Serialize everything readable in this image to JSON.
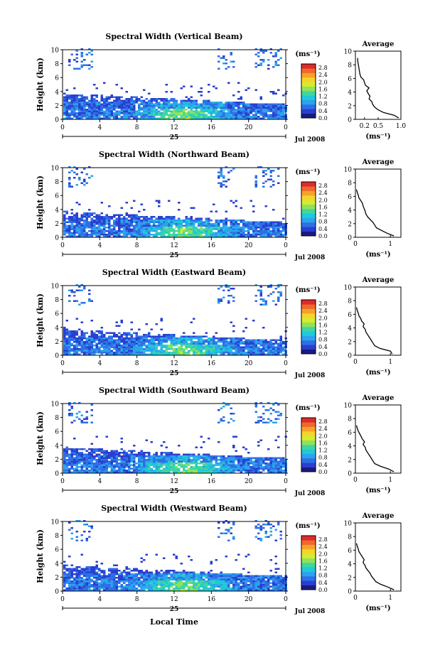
{
  "figure": {
    "xlabel": "Local Time",
    "day_label": "25",
    "month_label": "Jul 2008",
    "avg_title": "Average",
    "unit_label": "(ms⁻¹)",
    "ylabel": "Height (km)"
  },
  "colors": {
    "scale": [
      "#1a1a80",
      "#2a3fcf",
      "#2f6fe6",
      "#2ba3ee",
      "#20c8d8",
      "#3fd6a0",
      "#8fe25a",
      "#d6ea30",
      "#f6d42a",
      "#f6a22a",
      "#ef6a2a",
      "#e02a2a"
    ]
  },
  "chart_data": [
    {
      "type": "heatmap",
      "title": "Spectral Width (Vertical Beam)",
      "x_ticks": [
        "0",
        "4",
        "8",
        "12",
        "16",
        "20",
        "0"
      ],
      "y_ticks": [
        "0",
        "2",
        "4",
        "6",
        "8",
        "10"
      ],
      "xlim": [
        0,
        24
      ],
      "ylim": [
        0,
        10
      ],
      "colorbar_ticks": [
        "0.0",
        "0.4",
        "0.8",
        "1.2",
        "1.6",
        "2.0",
        "2.4",
        "2.8"
      ],
      "colorbar_range": [
        0,
        3.0
      ],
      "avg_profile": {
        "xlim": [
          0,
          1.0
        ],
        "x_ticks": [
          "0.2",
          "0.5",
          "1.0"
        ],
        "heights": [
          0.2,
          0.6,
          1.0,
          1.4,
          1.8,
          2.2,
          2.6,
          3.0,
          3.4,
          3.8,
          4.2,
          4.6,
          5.0,
          5.4,
          5.8,
          6.2,
          6.6,
          7.0,
          7.4,
          7.8,
          8.2,
          8.6,
          9.0
        ],
        "values": [
          0.95,
          0.85,
          0.62,
          0.5,
          0.42,
          0.38,
          0.36,
          0.3,
          0.32,
          0.28,
          0.25,
          0.3,
          0.22,
          0.2,
          0.18,
          0.12,
          0.1,
          0.09,
          0.08,
          0.07,
          0.06,
          0.05,
          0.05
        ]
      }
    },
    {
      "type": "heatmap",
      "title": "Spectral Width (Northward Beam)",
      "x_ticks": [
        "0",
        "4",
        "8",
        "12",
        "16",
        "20",
        "0"
      ],
      "y_ticks": [
        "0",
        "2",
        "4",
        "6",
        "8",
        "10"
      ],
      "xlim": [
        0,
        24
      ],
      "ylim": [
        0,
        10
      ],
      "colorbar_ticks": [
        "0.0",
        "0.4",
        "0.8",
        "1.2",
        "1.6",
        "2.0",
        "2.4",
        "2.8"
      ],
      "colorbar_range": [
        0,
        3.0
      ],
      "avg_profile": {
        "xlim": [
          0,
          1.3
        ],
        "x_ticks": [
          "0",
          "1"
        ],
        "heights": [
          0.2,
          0.6,
          1.0,
          1.4,
          1.8,
          2.2,
          2.6,
          3.0,
          3.4,
          3.8,
          4.2,
          4.6,
          5.0,
          5.4,
          5.8,
          6.2,
          6.6,
          7.0
        ],
        "values": [
          1.1,
          0.9,
          0.75,
          0.6,
          0.55,
          0.5,
          0.42,
          0.35,
          0.3,
          0.28,
          0.25,
          0.22,
          0.2,
          0.15,
          0.1,
          0.08,
          0.05,
          0.03
        ]
      }
    },
    {
      "type": "heatmap",
      "title": "Spectral Width (Eastward Beam)",
      "x_ticks": [
        "0",
        "4",
        "8",
        "12",
        "16",
        "20",
        "0"
      ],
      "y_ticks": [
        "0",
        "2",
        "4",
        "6",
        "8",
        "10"
      ],
      "xlim": [
        0,
        24
      ],
      "ylim": [
        0,
        10
      ],
      "colorbar_ticks": [
        "0.0",
        "0.4",
        "0.8",
        "1.2",
        "1.6",
        "2.0",
        "2.4",
        "2.8"
      ],
      "colorbar_range": [
        0,
        3.0
      ],
      "avg_profile": {
        "xlim": [
          0,
          1.3
        ],
        "x_ticks": [
          "0",
          "1"
        ],
        "heights": [
          0.2,
          0.6,
          1.0,
          1.4,
          1.8,
          2.2,
          2.6,
          3.0,
          3.4,
          3.8,
          4.2,
          4.6,
          5.0,
          5.4,
          5.8,
          6.2,
          6.6,
          7.0
        ],
        "values": [
          1.05,
          1.0,
          0.7,
          0.55,
          0.5,
          0.45,
          0.4,
          0.35,
          0.3,
          0.28,
          0.22,
          0.25,
          0.18,
          0.15,
          0.1,
          0.08,
          0.05,
          0.03
        ]
      }
    },
    {
      "type": "heatmap",
      "title": "Spectral Width (Southward Beam)",
      "x_ticks": [
        "0",
        "4",
        "8",
        "12",
        "16",
        "20",
        "0"
      ],
      "y_ticks": [
        "0",
        "2",
        "4",
        "6",
        "8",
        "10"
      ],
      "xlim": [
        0,
        24
      ],
      "ylim": [
        0,
        10
      ],
      "colorbar_ticks": [
        "0.0",
        "0.4",
        "0.8",
        "1.2",
        "1.6",
        "2.0",
        "2.4",
        "2.8"
      ],
      "colorbar_range": [
        0,
        3.0
      ],
      "avg_profile": {
        "xlim": [
          0,
          1.3
        ],
        "x_ticks": [
          "0",
          "1"
        ],
        "heights": [
          0.2,
          0.6,
          1.0,
          1.4,
          1.8,
          2.2,
          2.6,
          3.0,
          3.4,
          3.8,
          4.2,
          4.6,
          5.0,
          5.4,
          5.8,
          6.2,
          6.6,
          7.0
        ],
        "values": [
          1.1,
          0.95,
          0.72,
          0.55,
          0.5,
          0.45,
          0.4,
          0.35,
          0.3,
          0.28,
          0.22,
          0.26,
          0.2,
          0.16,
          0.12,
          0.08,
          0.05,
          0.03
        ]
      }
    },
    {
      "type": "heatmap",
      "title": "Spectral Width (Westward Beam)",
      "x_ticks": [
        "0",
        "4",
        "8",
        "12",
        "16",
        "20",
        "0"
      ],
      "y_ticks": [
        "0",
        "2",
        "4",
        "6",
        "8",
        "10"
      ],
      "xlim": [
        0,
        24
      ],
      "ylim": [
        0,
        10
      ],
      "colorbar_ticks": [
        "0.0",
        "0.4",
        "0.8",
        "1.2",
        "1.6",
        "2.0",
        "2.4",
        "2.8"
      ],
      "colorbar_range": [
        0,
        3.0
      ],
      "avg_profile": {
        "xlim": [
          0,
          1.3
        ],
        "x_ticks": [
          "0",
          "1"
        ],
        "heights": [
          0.2,
          0.6,
          1.0,
          1.4,
          1.8,
          2.2,
          2.6,
          3.0,
          3.4,
          3.8,
          4.2,
          4.6,
          5.0,
          5.4,
          5.8,
          6.2,
          6.6,
          7.0
        ],
        "values": [
          1.1,
          0.92,
          0.72,
          0.58,
          0.52,
          0.46,
          0.42,
          0.36,
          0.3,
          0.27,
          0.22,
          0.25,
          0.2,
          0.15,
          0.1,
          0.08,
          0.05,
          0.03
        ]
      }
    }
  ]
}
